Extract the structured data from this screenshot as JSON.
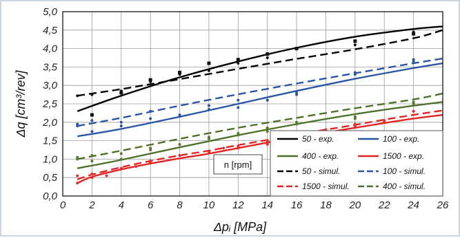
{
  "chart_data": {
    "type": "line",
    "xlabel": "Δpᵢ  [MPa]",
    "ylabel": "Δq  [cm³/rev]",
    "xlim": [
      0,
      26
    ],
    "ylim": [
      0,
      5
    ],
    "xticks": [
      "0",
      "2",
      "4",
      "6",
      "8",
      "10",
      "12",
      "14",
      "16",
      "18",
      "20",
      "22",
      "24",
      "26"
    ],
    "yticks": [
      "0,0",
      "0,5",
      "1,0",
      "1,5",
      "2,0",
      "2,5",
      "3,0",
      "3,5",
      "4,0",
      "4,5",
      "5,0"
    ],
    "grid": true,
    "legend_note": "n  [rpm]",
    "series": [
      {
        "name": "50 - exp.",
        "style": "points",
        "color": "#111111",
        "marker": "square",
        "x": [
          2,
          4,
          6,
          8,
          10,
          12,
          14,
          16,
          20,
          24
        ],
        "y": [
          2.2,
          2.8,
          3.15,
          3.35,
          3.6,
          3.7,
          3.85,
          4.0,
          4.2,
          4.4
        ]
      },
      {
        "name": "50 - simul.",
        "style": "points",
        "color": "#111111",
        "marker": "circle",
        "x": [
          1,
          2,
          4,
          6,
          8,
          10,
          12,
          14,
          16,
          20,
          24
        ],
        "y": [
          2.72,
          2.75,
          2.85,
          3.1,
          3.3,
          3.4,
          3.6,
          3.75,
          4.0,
          4.1,
          4.45
        ]
      },
      {
        "name": "100 - exp.",
        "style": "points",
        "color": "#2a55a5",
        "marker": "circle",
        "x": [
          1,
          2,
          4,
          6,
          10,
          12,
          14,
          16,
          20,
          24
        ],
        "y": [
          1.9,
          1.75,
          1.9,
          2.1,
          2.35,
          2.4,
          2.6,
          2.75,
          3.3,
          3.65
        ]
      },
      {
        "name": "100 - simul.",
        "style": "points",
        "color": "#2a55a5",
        "marker": "circle",
        "x": [
          1,
          2,
          4,
          6,
          8,
          10,
          12,
          14,
          16,
          20,
          24
        ],
        "y": [
          1.95,
          2.05,
          2.0,
          2.3,
          2.2,
          2.45,
          2.6,
          2.6,
          2.8,
          3.35,
          3.7
        ]
      },
      {
        "name": "400 - exp.",
        "style": "points",
        "color": "#5a7a2e",
        "marker": "circle",
        "x": [
          1,
          2,
          4,
          6,
          8,
          10,
          12,
          14,
          16,
          20,
          24
        ],
        "y": [
          1.0,
          0.95,
          1.0,
          1.3,
          1.4,
          1.6,
          1.65,
          1.75,
          1.95,
          2.1,
          2.55
        ]
      },
      {
        "name": "400 - simul.",
        "style": "points",
        "color": "#5a7a2e",
        "marker": "circle",
        "x": [
          1,
          2,
          4,
          6,
          8,
          10,
          12,
          14,
          16,
          20,
          24
        ],
        "y": [
          1.05,
          1.1,
          1.15,
          1.25,
          1.4,
          1.55,
          1.7,
          1.85,
          2.0,
          2.15,
          2.5
        ]
      },
      {
        "name": "1500 - exp.",
        "style": "points",
        "color": "#e03030",
        "marker": "circle",
        "x": [
          1,
          2,
          3,
          5,
          6,
          8,
          10,
          11,
          12,
          14,
          16,
          18,
          20,
          22,
          24
        ],
        "y": [
          0.35,
          0.5,
          0.55,
          0.8,
          0.95,
          1.1,
          1.2,
          1.3,
          1.3,
          1.4,
          1.55,
          1.75,
          1.9,
          2.0,
          2.3
        ]
      },
      {
        "name": "1500 - simul.",
        "style": "points",
        "color": "#e03030",
        "marker": "circle",
        "x": [
          1,
          2,
          4,
          6,
          8,
          10,
          12,
          14,
          16,
          18,
          20,
          22,
          24
        ],
        "y": [
          0.55,
          0.6,
          0.75,
          0.9,
          1.1,
          1.2,
          1.35,
          1.5,
          1.6,
          1.8,
          1.95,
          2.05,
          2.3
        ]
      },
      {
        "name": "50 - exp.",
        "style": "solid",
        "color": "#000000",
        "x": [
          1,
          4,
          8,
          12,
          16,
          20,
          24,
          26
        ],
        "y": [
          2.3,
          2.72,
          3.22,
          3.65,
          4.02,
          4.32,
          4.53,
          4.6
        ]
      },
      {
        "name": "50 - simul.",
        "style": "dash",
        "color": "#000000",
        "x": [
          1,
          4,
          8,
          12,
          16,
          20,
          24,
          26
        ],
        "y": [
          2.72,
          2.9,
          3.17,
          3.45,
          3.72,
          3.98,
          4.28,
          4.5
        ]
      },
      {
        "name": "100 - exp.",
        "style": "solid",
        "color": "#2a55a5",
        "x": [
          1,
          4,
          8,
          12,
          16,
          20,
          24,
          26
        ],
        "y": [
          1.62,
          1.82,
          2.15,
          2.5,
          2.85,
          3.18,
          3.47,
          3.6
        ]
      },
      {
        "name": "100 - simul.",
        "style": "dash",
        "color": "#2a55a5",
        "x": [
          1,
          4,
          8,
          12,
          16,
          20,
          24,
          26
        ],
        "y": [
          1.9,
          2.12,
          2.45,
          2.76,
          3.05,
          3.33,
          3.6,
          3.73
        ]
      },
      {
        "name": "400 - exp.",
        "style": "solid",
        "color": "#4e7029",
        "x": [
          1,
          4,
          8,
          12,
          16,
          20,
          24,
          26
        ],
        "y": [
          0.75,
          0.98,
          1.32,
          1.65,
          1.95,
          2.22,
          2.45,
          2.55
        ]
      },
      {
        "name": "400 - simul.",
        "style": "dash",
        "color": "#4e7029",
        "x": [
          1,
          4,
          8,
          12,
          16,
          20,
          24,
          26
        ],
        "y": [
          1.0,
          1.23,
          1.55,
          1.85,
          2.12,
          2.38,
          2.62,
          2.78
        ]
      },
      {
        "name": "1500 - exp.",
        "style": "solid",
        "color": "#e52222",
        "x": [
          1,
          2,
          4,
          6,
          8,
          10,
          12,
          14,
          16,
          18,
          20,
          22,
          24,
          26
        ],
        "y": [
          0.35,
          0.52,
          0.72,
          0.88,
          1.02,
          1.15,
          1.3,
          1.45,
          1.6,
          1.72,
          1.85,
          1.98,
          2.1,
          2.2
        ]
      },
      {
        "name": "1500 - simul.",
        "style": "dash",
        "color": "#e52222",
        "x": [
          1,
          2,
          4,
          6,
          8,
          10,
          12,
          14,
          16,
          18,
          20,
          22,
          24,
          26
        ],
        "y": [
          0.45,
          0.58,
          0.78,
          0.95,
          1.1,
          1.23,
          1.38,
          1.52,
          1.67,
          1.8,
          1.93,
          2.07,
          2.2,
          2.32
        ]
      }
    ],
    "legend": [
      {
        "label": "50 - exp.",
        "color": "#000000",
        "style": "solid"
      },
      {
        "label": "100 - exp.",
        "color": "#2a55a5",
        "style": "solid"
      },
      {
        "label": "400 - exp.",
        "color": "#4e7029",
        "style": "solid"
      },
      {
        "label": "1500 - exp.",
        "color": "#e52222",
        "style": "solid"
      },
      {
        "label": "50 - simul.",
        "color": "#000000",
        "style": "dash"
      },
      {
        "label": "100 - simul.",
        "color": "#2a55a5",
        "style": "dash"
      },
      {
        "label": "1500 - simul.",
        "color": "#e52222",
        "style": "dash"
      },
      {
        "label": "400 - simul.",
        "color": "#4e7029",
        "style": "dash"
      }
    ]
  }
}
